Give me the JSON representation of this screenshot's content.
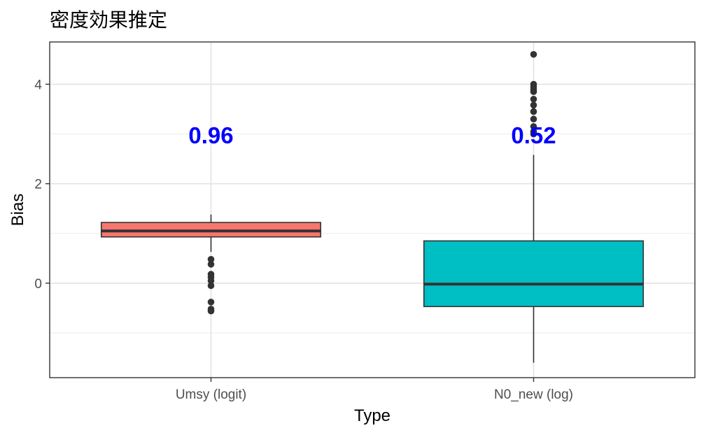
{
  "chart_data": {
    "type": "box",
    "title": "密度効果推定",
    "xlabel": "Type",
    "ylabel": "Bias",
    "categories": [
      "Umsy (logit)",
      "N0_new (log)"
    ],
    "ylim": [
      -1.9,
      4.85
    ],
    "y_ticks": [
      0,
      2,
      4
    ],
    "y_minor_ticks": [
      -1,
      1,
      3
    ],
    "grid": true,
    "legend": "none",
    "boxes": [
      {
        "category": "Umsy (logit)",
        "color": "#F8766D",
        "q1": 0.93,
        "median": 1.05,
        "q3": 1.22,
        "whisker_low": 0.63,
        "whisker_high": 1.38,
        "outliers": [
          0.48,
          0.38,
          0.18,
          0.12,
          0.05,
          -0.05,
          -0.38,
          -0.52,
          -0.56
        ],
        "annotation": "0.96"
      },
      {
        "category": "N0_new (log)",
        "color": "#00BFC4",
        "q1": -0.47,
        "median": -0.02,
        "q3": 0.85,
        "whisker_low": -1.6,
        "whisker_high": 2.58,
        "outliers": [
          4.6,
          4.0,
          3.95,
          3.9,
          3.85,
          3.7,
          3.58,
          3.45,
          3.3,
          3.15,
          3.05,
          3.0
        ],
        "annotation": "0.52"
      }
    ],
    "annotation_y": 2.98
  }
}
